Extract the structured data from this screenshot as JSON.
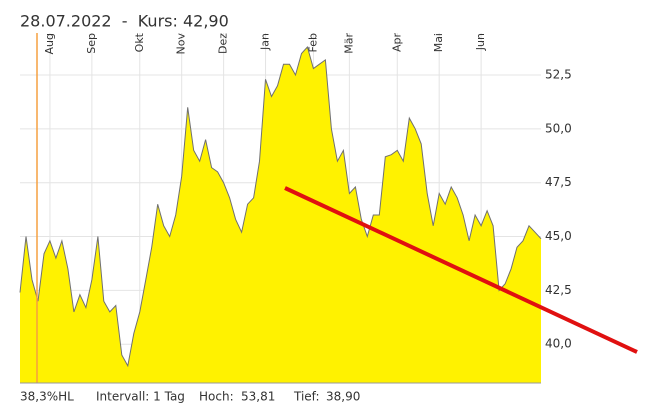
{
  "chart_data": {
    "type": "area",
    "title": "28.07.2022  -  Kurs: 42,90",
    "categories": [
      null,
      null,
      null,
      null,
      null,
      "Aug",
      null,
      null,
      null,
      null,
      null,
      null,
      "Sep",
      null,
      null,
      null,
      null,
      null,
      null,
      null,
      "Okt",
      null,
      null,
      null,
      null,
      null,
      null,
      "Nov",
      null,
      null,
      null,
      null,
      null,
      null,
      "Dez",
      null,
      null,
      null,
      null,
      null,
      null,
      "Jan",
      null,
      null,
      null,
      null,
      null,
      null,
      null,
      "Feb",
      null,
      null,
      null,
      null,
      null,
      "Mär",
      null,
      null,
      null,
      null,
      null,
      null,
      null,
      "Apr",
      null,
      null,
      null,
      null,
      null,
      null,
      "Mai",
      null,
      null,
      null,
      null,
      null,
      null,
      "Jun",
      null,
      null,
      null,
      null,
      null,
      null,
      null,
      null,
      null,
      null
    ],
    "values": [
      42.4,
      45.0,
      43.0,
      42.0,
      44.2,
      44.8,
      44.0,
      44.8,
      43.5,
      41.5,
      42.3,
      41.7,
      43.0,
      45.0,
      42.0,
      41.5,
      41.8,
      39.5,
      39.0,
      40.5,
      41.5,
      43.0,
      44.5,
      46.5,
      45.5,
      45.0,
      46.0,
      47.8,
      51.0,
      49.0,
      48.5,
      49.5,
      48.2,
      48.0,
      47.5,
      46.8,
      45.8,
      45.2,
      46.5,
      46.8,
      48.5,
      52.3,
      51.5,
      52.0,
      53.0,
      53.0,
      52.5,
      53.5,
      53.8,
      52.8,
      53.0,
      53.2,
      50.0,
      48.5,
      49.0,
      47.0,
      47.3,
      45.8,
      45.0,
      46.0,
      46.0,
      48.7,
      48.8,
      49.0,
      48.5,
      50.5,
      50.0,
      49.3,
      47.0,
      45.5,
      47.0,
      46.5,
      47.3,
      46.8,
      46.0,
      44.8,
      46.0,
      45.5,
      46.2,
      45.5,
      42.5,
      42.8,
      43.5,
      44.5,
      44.8,
      45.5,
      45.2,
      44.9
    ],
    "color": "#fff200",
    "line_color": "#707070",
    "ylim": [
      38.2,
      54.45
    ],
    "yticks": [
      {
        "value": 40,
        "label": "40,0"
      },
      {
        "value": 42.5,
        "label": "42,5"
      },
      {
        "value": 45,
        "label": "45,0"
      },
      {
        "value": 47.5,
        "label": "47,5"
      },
      {
        "value": 50,
        "label": "50,0"
      },
      {
        "value": 52.5,
        "label": "52,5"
      }
    ],
    "grid": true,
    "footer": {
      "range": "38,3%HL",
      "interval": "Intervall: 1 Tag",
      "high_label": "Hoch:",
      "high": "53,81",
      "low_label": "Tief:",
      "low": "38,90"
    }
  }
}
